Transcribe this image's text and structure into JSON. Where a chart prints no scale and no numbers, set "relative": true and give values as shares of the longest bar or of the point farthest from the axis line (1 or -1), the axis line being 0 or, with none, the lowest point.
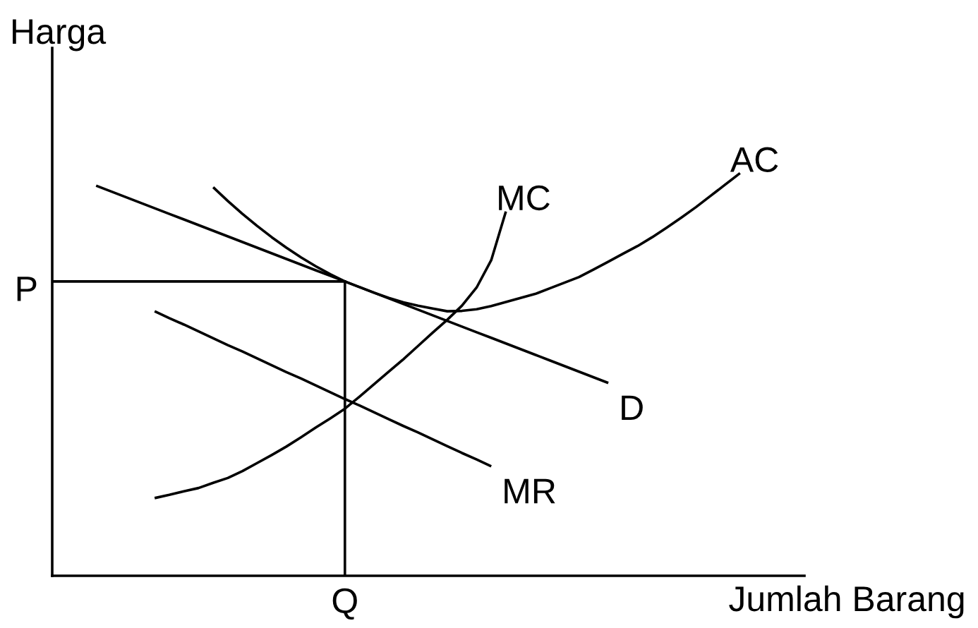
{
  "chart_data": {
    "type": "line",
    "relative": true,
    "xlabel": "Jumlah Barang",
    "ylabel": "Harga",
    "line_style": "solid",
    "categories": [
      null,
      null,
      null,
      null,
      null,
      null,
      null,
      null,
      null,
      null,
      null,
      null,
      null,
      null,
      null,
      null,
      null,
      null,
      null,
      null,
      null,
      null,
      null,
      null,
      null,
      null,
      null,
      null,
      null,
      null,
      null,
      null,
      null,
      null,
      null,
      null,
      null,
      null,
      null,
      null,
      null,
      null,
      null,
      null,
      null,
      null,
      null,
      null,
      null,
      null,
      null
    ],
    "series": [
      {
        "name": "D",
        "color": "#000000",
        "values": [
          null,
          null,
          0.969,
          0.955,
          0.941,
          0.927,
          0.913,
          0.899,
          0.885,
          0.871,
          0.857,
          0.843,
          0.829,
          0.815,
          0.801,
          0.787,
          0.773,
          0.759,
          0.745,
          0.731,
          0.717,
          0.703,
          0.689,
          0.675,
          0.661,
          0.647,
          0.633,
          0.619,
          0.605,
          0.591,
          0.577,
          0.563,
          0.549,
          0.535,
          0.521,
          0.507,
          0.493,
          0.479,
          null,
          null,
          null,
          null,
          null,
          null,
          null,
          null,
          null,
          null,
          null,
          null,
          null
        ]
      },
      {
        "name": "MR",
        "color": "#000000",
        "values": [
          null,
          null,
          null,
          null,
          null,
          null,
          0.657,
          0.64,
          0.624,
          0.607,
          0.59,
          0.573,
          0.557,
          0.54,
          0.523,
          0.506,
          0.49,
          0.473,
          0.456,
          0.439,
          0.423,
          0.406,
          0.389,
          0.372,
          0.356,
          0.339,
          0.322,
          0.305,
          0.289,
          0.272,
          null,
          null,
          null,
          null,
          null,
          null,
          null,
          null,
          null,
          null,
          null,
          null,
          null,
          null,
          null,
          null,
          null,
          null,
          null,
          null,
          null
        ]
      },
      {
        "name": "MC",
        "color": "#000000",
        "values": [
          null,
          null,
          null,
          null,
          null,
          null,
          0.193,
          0.201,
          0.21,
          0.218,
          0.231,
          0.243,
          0.26,
          0.28,
          0.3,
          0.321,
          0.344,
          0.368,
          0.391,
          0.415,
          0.445,
          0.476,
          0.507,
          0.538,
          0.571,
          0.604,
          0.636,
          0.671,
          0.716,
          0.784,
          0.905,
          null,
          null,
          null,
          null,
          null,
          null,
          null,
          null,
          null,
          null,
          null,
          null,
          null,
          null,
          null,
          null,
          null,
          null,
          null,
          null
        ]
      },
      {
        "name": "AC",
        "color": "#000000",
        "values": [
          null,
          null,
          null,
          null,
          null,
          null,
          null,
          null,
          null,
          null,
          0.965,
          0.931,
          0.899,
          0.869,
          0.841,
          0.815,
          0.791,
          0.769,
          0.749,
          0.731,
          0.717,
          0.703,
          0.69,
          0.679,
          0.671,
          0.664,
          0.657,
          0.658,
          0.662,
          0.67,
          0.68,
          0.69,
          0.7,
          0.714,
          0.728,
          0.742,
          0.761,
          0.78,
          0.8,
          0.819,
          0.841,
          0.865,
          0.89,
          0.916,
          0.944,
          0.972,
          1.0,
          null,
          null,
          null,
          null
        ]
      }
    ],
    "ref_lines": [
      {
        "axis": "y",
        "value": 0.731,
        "label": "P",
        "color": "#000000"
      }
    ],
    "annotations": [
      "Q"
    ]
  }
}
